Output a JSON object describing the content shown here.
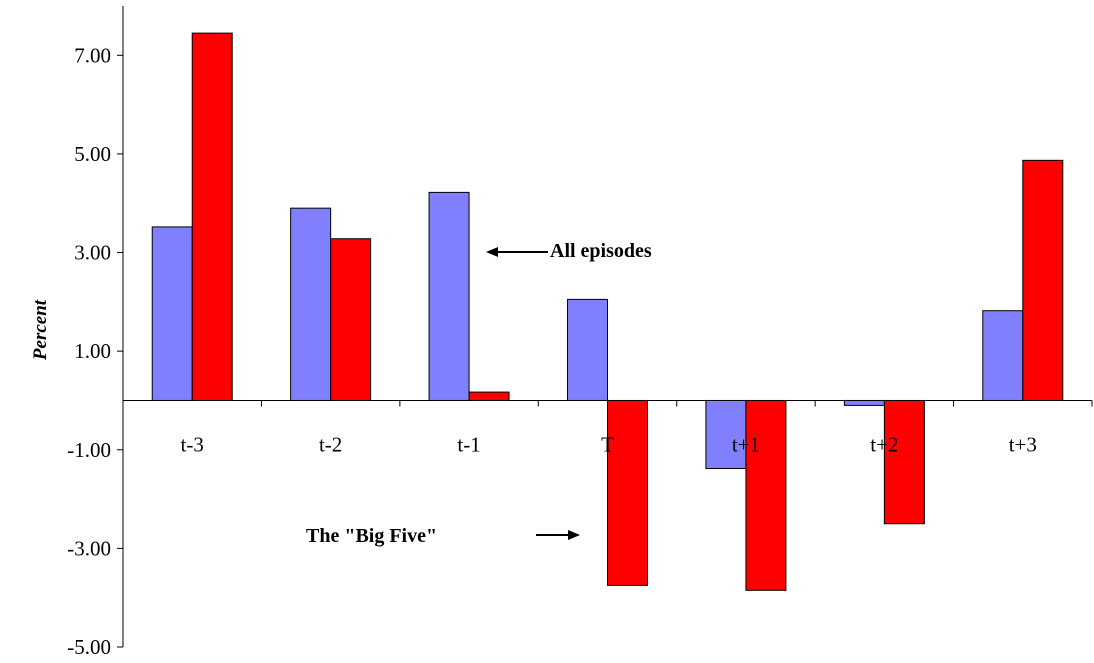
{
  "chart_data": {
    "type": "bar",
    "categories": [
      "t-3",
      "t-2",
      "t-1",
      "T",
      "t+1",
      "t+2",
      "t+3"
    ],
    "series": [
      {
        "name": "All episodes",
        "values": [
          3.52,
          3.9,
          4.22,
          2.05,
          -1.38,
          -0.1,
          1.82
        ],
        "color": "#8080ff"
      },
      {
        "name": "The \"Big Five\"",
        "values": [
          7.45,
          3.28,
          0.17,
          -3.75,
          -3.85,
          -2.5,
          4.87
        ],
        "color": "#ff0000"
      }
    ],
    "ylabel": "Percent",
    "ylim": [
      -5,
      8
    ],
    "yticks": [
      "7.00",
      "5.00",
      "3.00",
      "1.00",
      "-1.00",
      "-3.00",
      "-5.00"
    ],
    "annotations": [
      "All episodes",
      "The \"Big Five\""
    ],
    "grid": false,
    "legend": "none"
  }
}
